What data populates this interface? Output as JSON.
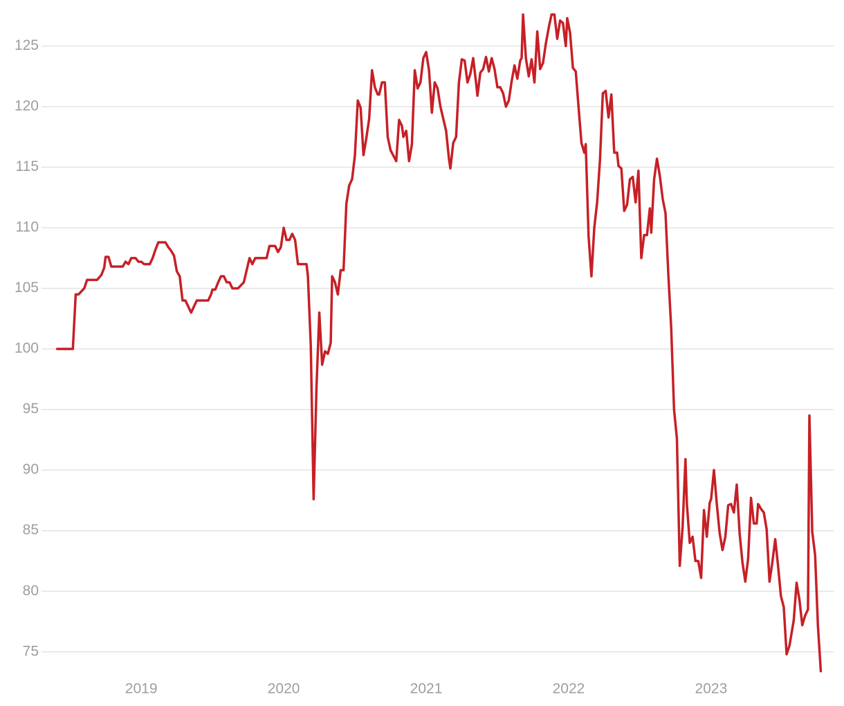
{
  "chart_data": {
    "type": "line",
    "x": [
      2018.41,
      2018.52,
      2018.54,
      2018.56,
      2018.6,
      2018.62,
      2018.69,
      2018.72,
      2018.74,
      2018.75,
      2018.77,
      2018.79,
      2018.87,
      2018.89,
      2018.91,
      2018.93,
      2018.96,
      2018.98,
      2019.0,
      2019.02,
      2019.06,
      2019.08,
      2019.1,
      2019.12,
      2019.17,
      2019.19,
      2019.21,
      2019.23,
      2019.25,
      2019.27,
      2019.29,
      2019.31,
      2019.35,
      2019.39,
      2019.47,
      2019.49,
      2019.5,
      2019.52,
      2019.54,
      2019.56,
      2019.58,
      2019.6,
      2019.62,
      2019.64,
      2019.68,
      2019.72,
      2019.74,
      2019.76,
      2019.78,
      2019.8,
      2019.88,
      2019.9,
      2019.94,
      2019.96,
      2019.98,
      2020.0,
      2020.02,
      2020.04,
      2020.06,
      2020.08,
      2020.1,
      2020.16,
      2020.17,
      2020.19,
      2020.21,
      2020.23,
      2020.25,
      2020.27,
      2020.29,
      2020.31,
      2020.33,
      2020.34,
      2020.36,
      2020.38,
      2020.4,
      2020.42,
      2020.44,
      2020.46,
      2020.48,
      2020.5,
      2020.52,
      2020.54,
      2020.56,
      2020.58,
      2020.6,
      2020.62,
      2020.64,
      2020.66,
      2020.67,
      2020.69,
      2020.71,
      2020.73,
      2020.75,
      2020.79,
      2020.81,
      2020.83,
      2020.84,
      2020.86,
      2020.88,
      2020.9,
      2020.92,
      2020.94,
      2020.96,
      2020.98,
      2021.0,
      2021.02,
      2021.04,
      2021.06,
      2021.08,
      2021.1,
      2021.12,
      2021.14,
      2021.16,
      2021.17,
      2021.19,
      2021.21,
      2021.23,
      2021.25,
      2021.27,
      2021.29,
      2021.31,
      2021.33,
      2021.35,
      2021.36,
      2021.38,
      2021.4,
      2021.42,
      2021.44,
      2021.46,
      2021.48,
      2021.5,
      2021.52,
      2021.54,
      2021.56,
      2021.58,
      2021.6,
      2021.62,
      2021.64,
      2021.66,
      2021.67,
      2021.68,
      2021.7,
      2021.72,
      2021.74,
      2021.76,
      2021.78,
      2021.8,
      2021.82,
      2021.84,
      2021.86,
      2021.88,
      2021.9,
      2021.92,
      2021.94,
      2021.96,
      2021.98,
      2021.99,
      2022.01,
      2022.03,
      2022.05,
      2022.07,
      2022.09,
      2022.11,
      2022.12,
      2022.14,
      2022.16,
      2022.18,
      2022.2,
      2022.22,
      2022.24,
      2022.26,
      2022.28,
      2022.3,
      2022.32,
      2022.34,
      2022.35,
      2022.37,
      2022.39,
      2022.41,
      2022.43,
      2022.45,
      2022.47,
      2022.49,
      2022.51,
      2022.53,
      2022.55,
      2022.57,
      2022.58,
      2022.6,
      2022.62,
      2022.64,
      2022.66,
      2022.68,
      2022.7,
      2022.72,
      2022.74,
      2022.76,
      2022.78,
      2022.8,
      2022.82,
      2022.83,
      2022.85,
      2022.87,
      2022.89,
      2022.91,
      2022.93,
      2022.95,
      2022.97,
      2022.99,
      2023.0,
      2023.02,
      2023.04,
      2023.06,
      2023.08,
      2023.1,
      2023.12,
      2023.14,
      2023.16,
      2023.18,
      2023.2,
      2023.22,
      2023.24,
      2023.26,
      2023.28,
      2023.3,
      2023.32,
      2023.33,
      2023.35,
      2023.37,
      2023.39,
      2023.41,
      2023.43,
      2023.45,
      2023.47,
      2023.49,
      2023.51,
      2023.53,
      2023.55,
      2023.58,
      2023.6,
      2023.62,
      2023.64,
      2023.66,
      2023.68,
      2023.69,
      2023.71,
      2023.73,
      2023.75,
      2023.77
    ],
    "values": [
      100.0,
      100.0,
      104.5,
      104.5,
      105.0,
      105.7,
      105.7,
      106.1,
      106.7,
      107.6,
      107.6,
      106.8,
      106.8,
      107.2,
      107.0,
      107.5,
      107.5,
      107.2,
      107.2,
      107.0,
      107.0,
      107.5,
      108.2,
      108.8,
      108.8,
      108.4,
      108.1,
      107.7,
      106.4,
      106.0,
      104.0,
      104.0,
      103.0,
      104.0,
      104.0,
      104.5,
      104.9,
      104.9,
      105.5,
      106.0,
      106.0,
      105.5,
      105.5,
      105.0,
      105.0,
      105.5,
      106.5,
      107.5,
      107.0,
      107.5,
      107.5,
      108.5,
      108.5,
      108.0,
      108.4,
      110.0,
      109.0,
      109.0,
      109.5,
      109.0,
      107.0,
      107.0,
      106.0,
      100.3,
      87.6,
      96.8,
      103.0,
      98.7,
      99.8,
      99.6,
      100.5,
      106.0,
      105.5,
      104.5,
      106.5,
      106.5,
      112.0,
      113.5,
      114.0,
      116.0,
      120.5,
      119.9,
      116.0,
      117.4,
      119.0,
      123.0,
      121.6,
      121.0,
      121.0,
      122.0,
      122.0,
      117.5,
      116.4,
      115.5,
      118.9,
      118.4,
      117.5,
      118.0,
      115.5,
      116.9,
      123.0,
      121.5,
      122.0,
      124.0,
      124.5,
      123.0,
      119.5,
      122.0,
      121.5,
      120.0,
      119.0,
      118.0,
      115.7,
      114.9,
      117.0,
      117.5,
      122.0,
      123.9,
      123.8,
      122.0,
      122.7,
      124.0,
      122.0,
      120.9,
      122.8,
      123.1,
      124.1,
      122.9,
      124.0,
      123.1,
      121.6,
      121.6,
      121.1,
      120.0,
      120.5,
      122.1,
      123.4,
      122.3,
      123.8,
      124.0,
      127.6,
      124.0,
      122.5,
      123.9,
      122.0,
      126.2,
      123.1,
      123.6,
      125.2,
      126.5,
      127.6,
      127.6,
      125.6,
      127.1,
      126.9,
      125.0,
      127.3,
      126.1,
      123.2,
      122.9,
      119.9,
      117.0,
      116.2,
      116.9,
      109.3,
      106.0,
      110.0,
      112.1,
      115.6,
      121.1,
      121.3,
      119.1,
      121.0,
      116.2,
      116.2,
      115.1,
      114.9,
      111.4,
      111.9,
      114.0,
      114.2,
      112.1,
      114.7,
      107.5,
      109.4,
      109.4,
      111.6,
      109.6,
      114.0,
      115.7,
      114.3,
      112.4,
      111.2,
      106.1,
      101.7,
      95.0,
      92.6,
      82.1,
      85.3,
      90.9,
      87.2,
      84.0,
      84.5,
      82.5,
      82.5,
      81.1,
      86.7,
      84.5,
      87.3,
      87.6,
      90.0,
      87.2,
      84.8,
      83.4,
      84.5,
      87.1,
      87.2,
      86.5,
      88.8,
      84.8,
      82.4,
      80.8,
      82.7,
      87.7,
      85.6,
      85.6,
      87.2,
      86.8,
      86.5,
      85.1,
      80.8,
      82.4,
      84.3,
      82.1,
      79.6,
      78.7,
      74.8,
      75.5,
      77.6,
      80.7,
      79.3,
      77.2,
      78.0,
      78.5,
      94.5,
      84.9,
      83.0,
      77.1,
      73.4
    ],
    "color": "#c62026",
    "xlim": [
      2018.3,
      2023.86
    ],
    "xticks": [
      2019,
      2020,
      2021,
      2022,
      2023
    ],
    "ylim": [
      73.1,
      128.8
    ],
    "yticks": [
      75,
      80,
      85,
      90,
      95,
      100,
      105,
      110,
      115,
      120,
      125
    ],
    "grid": true
  }
}
